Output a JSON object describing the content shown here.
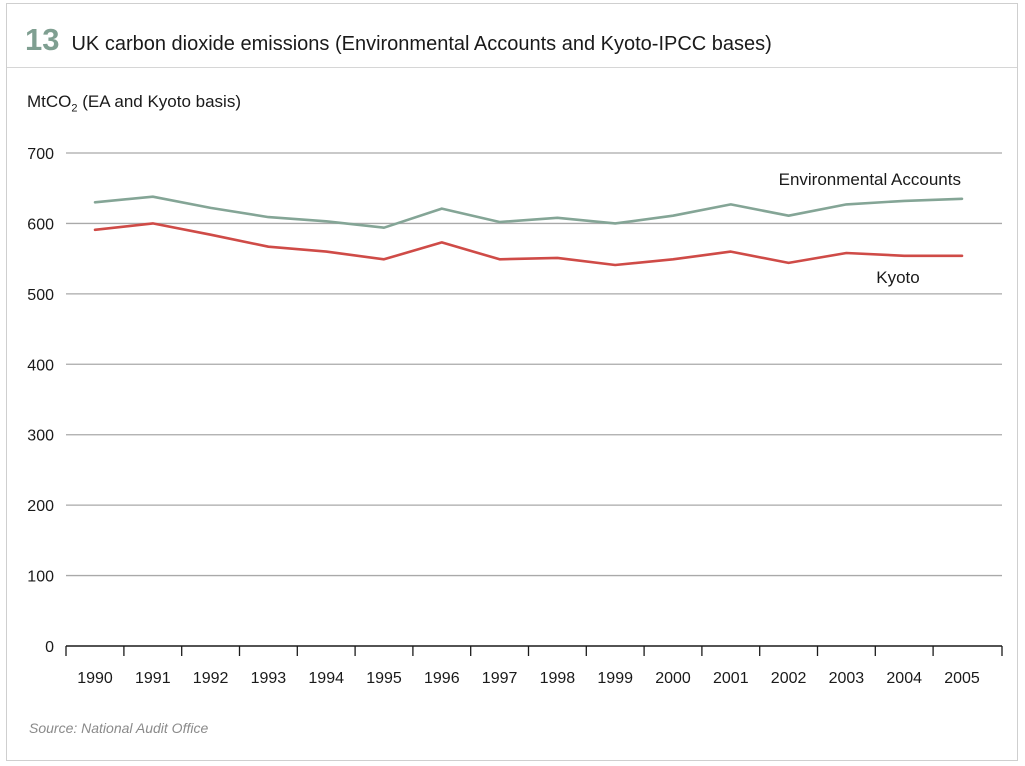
{
  "figure": {
    "number": "13",
    "title": "UK carbon dioxide emissions (Environmental Accounts and Kyoto-IPCC bases)",
    "source": "Source: National Audit Office"
  },
  "chart_data": {
    "type": "line",
    "title": "UK carbon dioxide emissions (Environmental Accounts and Kyoto-IPCC bases)",
    "ylabel_main": "MtCO",
    "ylabel_sub": "2",
    "ylabel_rest": " (EA and Kyoto basis)",
    "xlabel": "",
    "categories": [
      "1990",
      "1991",
      "1992",
      "1993",
      "1994",
      "1995",
      "1996",
      "1997",
      "1998",
      "1999",
      "2000",
      "2001",
      "2002",
      "2003",
      "2004",
      "2005"
    ],
    "ylim": [
      0,
      700
    ],
    "yticks": [
      0,
      100,
      200,
      300,
      400,
      500,
      600,
      700
    ],
    "grid": true,
    "series": [
      {
        "name": "Environmental Accounts",
        "color": "#84a596",
        "values": [
          630,
          638,
          622,
          609,
          603,
          594,
          621,
          602,
          608,
          600,
          611,
          627,
          611,
          627,
          632,
          635
        ]
      },
      {
        "name": "Kyoto",
        "color": "#cf4b47",
        "values": [
          591,
          600,
          584,
          567,
          560,
          549,
          573,
          549,
          551,
          541,
          549,
          560,
          544,
          558,
          554,
          554
        ]
      }
    ]
  }
}
